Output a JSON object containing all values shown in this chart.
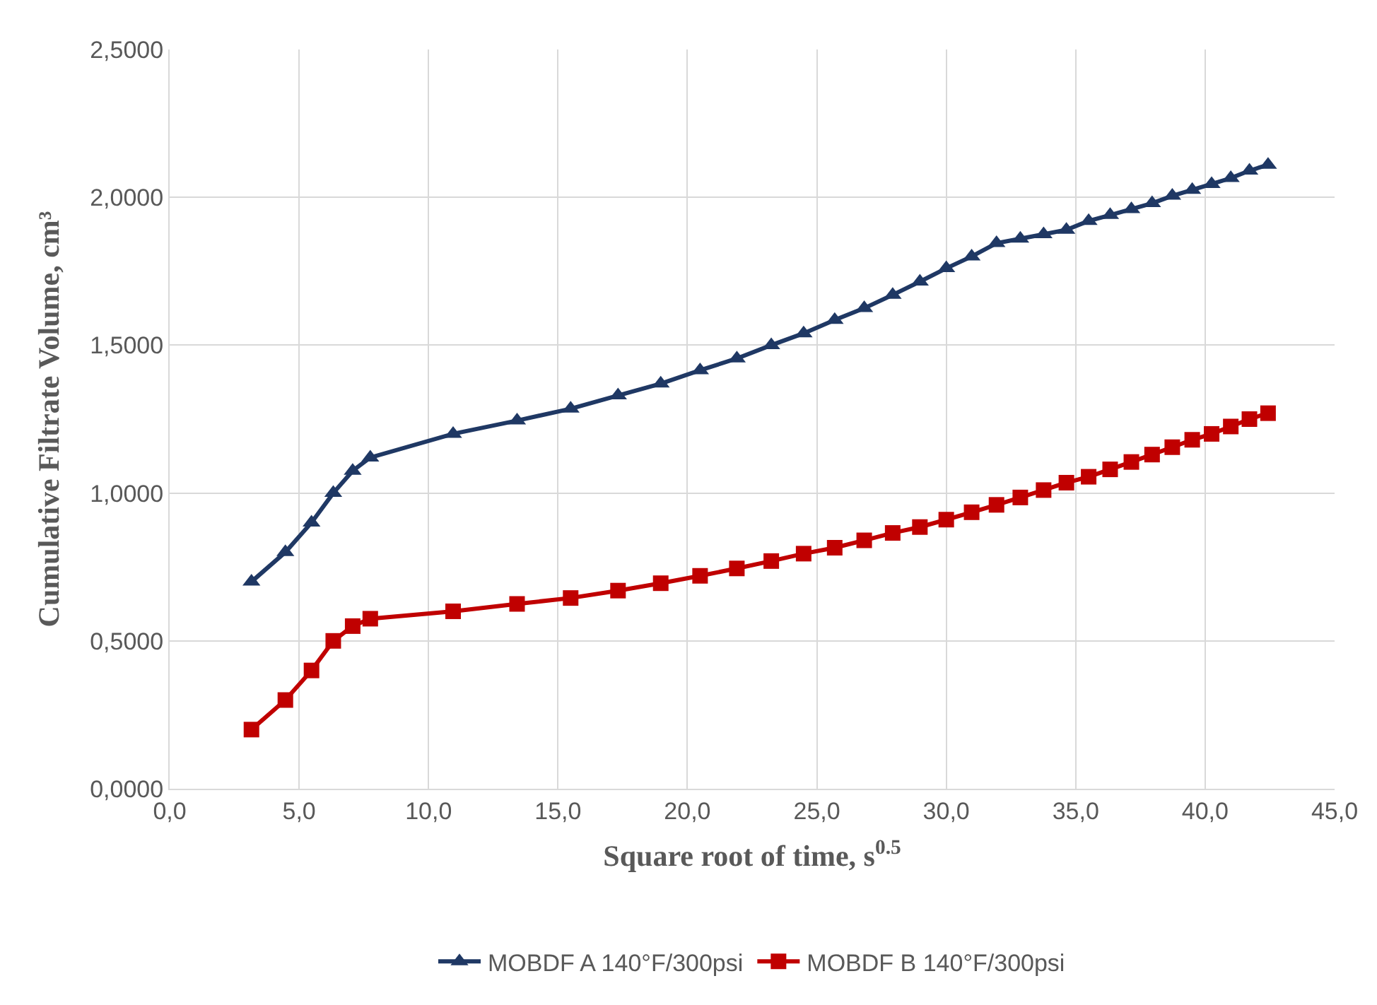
{
  "chart_data": {
    "type": "line",
    "xlabel": "Square root of time, s$^{0.5}$",
    "ylabel": "Cumulative Filtrate Volume, cm³",
    "x": [
      3.16,
      4.47,
      5.48,
      6.32,
      7.07,
      7.75,
      10.95,
      13.42,
      15.49,
      17.32,
      18.97,
      20.49,
      21.91,
      23.24,
      24.49,
      25.69,
      26.83,
      27.93,
      28.98,
      30.0,
      30.98,
      31.94,
      32.86,
      33.76,
      34.64,
      35.5,
      36.33,
      37.15,
      37.95,
      38.73,
      39.5,
      40.25,
      40.99,
      41.71,
      42.43
    ],
    "series": [
      {
        "name": "MOBDF A 140°F/300psi",
        "color": "#1f3864",
        "marker": "triangle",
        "values": [
          0.7,
          0.8,
          0.9,
          1.0,
          1.075,
          1.12,
          1.2,
          1.245,
          1.285,
          1.33,
          1.37,
          1.415,
          1.455,
          1.5,
          1.54,
          1.585,
          1.625,
          1.67,
          1.715,
          1.76,
          1.8,
          1.845,
          1.86,
          1.875,
          1.89,
          1.92,
          1.94,
          1.96,
          1.98,
          2.005,
          2.025,
          2.045,
          2.065,
          2.09,
          2.11
        ]
      },
      {
        "name": "MOBDF B 140°F/300psi",
        "color": "#c00000",
        "marker": "square",
        "values": [
          0.2,
          0.3,
          0.4,
          0.5,
          0.55,
          0.575,
          0.6,
          0.625,
          0.645,
          0.67,
          0.695,
          0.72,
          0.745,
          0.77,
          0.795,
          0.815,
          0.84,
          0.865,
          0.885,
          0.91,
          0.935,
          0.96,
          0.985,
          1.01,
          1.035,
          1.055,
          1.08,
          1.105,
          1.13,
          1.155,
          1.18,
          1.2,
          1.225,
          1.25,
          1.27
        ]
      }
    ],
    "xlim": [
      0,
      45
    ],
    "xticks": [
      {
        "value": 0,
        "label": "0,0"
      },
      {
        "value": 5,
        "label": "5,0"
      },
      {
        "value": 10,
        "label": "10,0"
      },
      {
        "value": 15,
        "label": "15,0"
      },
      {
        "value": 20,
        "label": "20,0"
      },
      {
        "value": 25,
        "label": "25,0"
      },
      {
        "value": 30,
        "label": "30,0"
      },
      {
        "value": 35,
        "label": "35,0"
      },
      {
        "value": 40,
        "label": "40,0"
      },
      {
        "value": 45,
        "label": "45,0"
      }
    ],
    "ylim": [
      0,
      2.5
    ],
    "yticks": [
      {
        "value": 0,
        "label": "0,0000"
      },
      {
        "value": 0.5,
        "label": "0,5000"
      },
      {
        "value": 1,
        "label": "1,0000"
      },
      {
        "value": 1.5,
        "label": "1,5000"
      },
      {
        "value": 2,
        "label": "2,0000"
      },
      {
        "value": 2.5,
        "label": "2,5000"
      }
    ],
    "grid": true,
    "legend": "bottom",
    "line_style": "solid"
  }
}
